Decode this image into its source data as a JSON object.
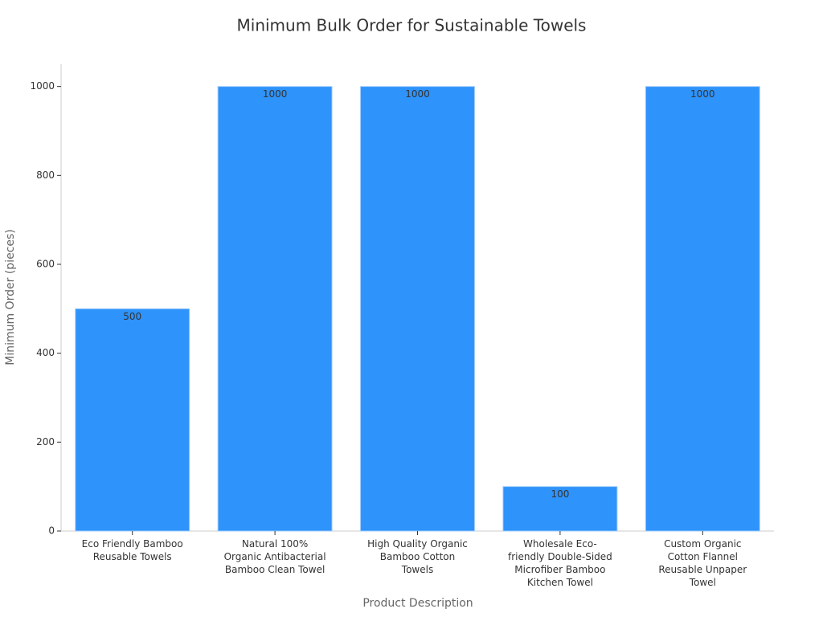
{
  "chart_data": {
    "type": "bar",
    "title": "Minimum Bulk Order for Sustainable Towels",
    "x_label": "Product Description",
    "y_label": "Minimum Order (pieces)",
    "categories": [
      "Eco Friendly Bamboo Reusable Towels",
      "Natural 100% Organic Antibacterial Bamboo Clean Towel",
      "High Quality Organic Bamboo Cotton Towels",
      "Wholesale Eco-friendly Double-Sided Microfiber Bamboo Kitchen Towel",
      "Custom Organic Cotton Flannel Reusable Unpaper Towel"
    ],
    "values": [
      500,
      1000,
      1000,
      100,
      1000
    ],
    "color": "#2e93fa",
    "ylim": [
      0,
      1050
    ],
    "yticks": [
      0,
      200,
      400,
      600,
      800,
      1000
    ],
    "grid": false,
    "value_labels_shown": true
  }
}
